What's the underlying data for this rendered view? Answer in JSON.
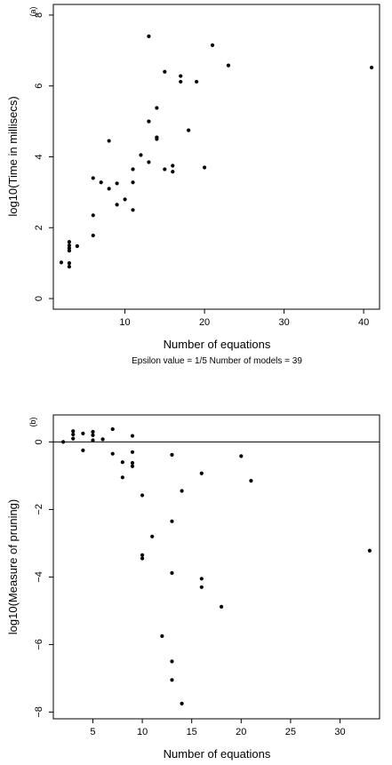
{
  "chart_data": [
    {
      "type": "scatter",
      "panel_label": "(a)",
      "xlabel": "Number of equations",
      "ylabel": "log10(Time in millisecs)",
      "caption": "Epsilon value =  1/5 Number of models =  39",
      "xlim": [
        1,
        42
      ],
      "ylim": [
        -0.3,
        8.3
      ],
      "xticks": [
        10,
        20,
        30,
        40
      ],
      "yticks": [
        0,
        2,
        4,
        6,
        8
      ],
      "grid": false,
      "points": [
        [
          2,
          1.02
        ],
        [
          3,
          1.6
        ],
        [
          3,
          1.5
        ],
        [
          3,
          1.42
        ],
        [
          3,
          1.35
        ],
        [
          3,
          1.0
        ],
        [
          3,
          0.9
        ],
        [
          4,
          1.48
        ],
        [
          6,
          3.4
        ],
        [
          6,
          2.35
        ],
        [
          6,
          1.78
        ],
        [
          7,
          3.28
        ],
        [
          8,
          4.45
        ],
        [
          8,
          3.1
        ],
        [
          9,
          3.25
        ],
        [
          9,
          2.65
        ],
        [
          10,
          2.8
        ],
        [
          11,
          3.65
        ],
        [
          11,
          3.28
        ],
        [
          11,
          2.5
        ],
        [
          12,
          4.05
        ],
        [
          13,
          7.4
        ],
        [
          13,
          5.0
        ],
        [
          13,
          3.85
        ],
        [
          14,
          5.38
        ],
        [
          14,
          4.55
        ],
        [
          14,
          4.5
        ],
        [
          15,
          6.4
        ],
        [
          15,
          3.65
        ],
        [
          16,
          3.75
        ],
        [
          16,
          3.58
        ],
        [
          17,
          6.28
        ],
        [
          17,
          6.12
        ],
        [
          18,
          4.75
        ],
        [
          19,
          6.12
        ],
        [
          20,
          3.7
        ],
        [
          21,
          7.15
        ],
        [
          23,
          6.58
        ],
        [
          41,
          6.52
        ]
      ]
    },
    {
      "type": "scatter",
      "panel_label": "(b)",
      "xlabel": "Number of equations",
      "ylabel": "log10(Measure of pruning)",
      "xlim": [
        1,
        34
      ],
      "ylim": [
        -8.2,
        0.8
      ],
      "xticks": [
        5,
        10,
        15,
        20,
        25,
        30
      ],
      "yticks": [
        0,
        -2,
        -4,
        -6,
        -8
      ],
      "reference_line_y": 0,
      "grid": false,
      "points": [
        [
          2,
          0.0
        ],
        [
          3,
          0.32
        ],
        [
          3,
          0.22
        ],
        [
          3,
          0.1
        ],
        [
          4,
          0.25
        ],
        [
          4,
          -0.25
        ],
        [
          5,
          0.3
        ],
        [
          5,
          0.2
        ],
        [
          5,
          0.05
        ],
        [
          6,
          0.08
        ],
        [
          7,
          0.38
        ],
        [
          7,
          -0.35
        ],
        [
          8,
          -0.6
        ],
        [
          8,
          -1.05
        ],
        [
          9,
          0.18
        ],
        [
          9,
          -0.3
        ],
        [
          9,
          -0.62
        ],
        [
          9,
          -0.72
        ],
        [
          10,
          -1.58
        ],
        [
          10,
          -3.35
        ],
        [
          10,
          -3.45
        ],
        [
          11,
          -2.8
        ],
        [
          12,
          -5.75
        ],
        [
          13,
          -0.38
        ],
        [
          13,
          -2.35
        ],
        [
          13,
          -3.88
        ],
        [
          13,
          -6.5
        ],
        [
          13,
          -7.05
        ],
        [
          14,
          -1.45
        ],
        [
          14,
          -7.75
        ],
        [
          16,
          -0.93
        ],
        [
          16,
          -4.05
        ],
        [
          16,
          -4.3
        ],
        [
          18,
          -4.88
        ],
        [
          20,
          -0.42
        ],
        [
          21,
          -1.15
        ],
        [
          33,
          -3.22
        ]
      ]
    }
  ]
}
